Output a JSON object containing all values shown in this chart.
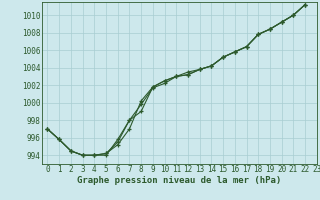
{
  "title": "Graphe pression niveau de la mer (hPa)",
  "bg_color": "#cde8ec",
  "grid_color": "#a8cdd2",
  "line_color": "#2d5a2d",
  "xlim": [
    -0.5,
    23
  ],
  "ylim": [
    993.0,
    1011.5
  ],
  "xticks": [
    0,
    1,
    2,
    3,
    4,
    5,
    6,
    7,
    8,
    9,
    10,
    11,
    12,
    13,
    14,
    15,
    16,
    17,
    18,
    19,
    20,
    21,
    22,
    23
  ],
  "yticks": [
    994,
    996,
    998,
    1000,
    1002,
    1004,
    1006,
    1008,
    1010
  ],
  "series1": [
    997.0,
    995.8,
    994.5,
    994.0,
    994.0,
    994.0,
    995.8,
    998.0,
    999.8,
    1001.7,
    1002.2,
    1003.0,
    1003.2,
    1003.8,
    1004.2,
    1005.2,
    1005.8,
    1006.4,
    1007.8,
    1008.4,
    1009.2,
    1010.0,
    1011.2
  ],
  "series2": [
    997.0,
    995.8,
    994.5,
    994.0,
    994.0,
    994.2,
    995.2,
    997.0,
    1000.2,
    1001.8,
    1002.5,
    1003.0,
    1003.2,
    1003.8,
    1004.2,
    1005.2,
    1005.8,
    1006.4,
    1007.8,
    1008.4,
    1009.2,
    1010.0,
    1011.2
  ],
  "series3": [
    997.0,
    995.8,
    994.5,
    994.0,
    994.0,
    994.2,
    995.5,
    998.0,
    999.0,
    1001.8,
    1002.5,
    1003.0,
    1003.5,
    1003.8,
    1004.2,
    1005.2,
    1005.8,
    1006.4,
    1007.8,
    1008.4,
    1009.2,
    1010.0,
    1011.2
  ],
  "tick_fontsize": 5.5,
  "xlabel_fontsize": 6.5
}
